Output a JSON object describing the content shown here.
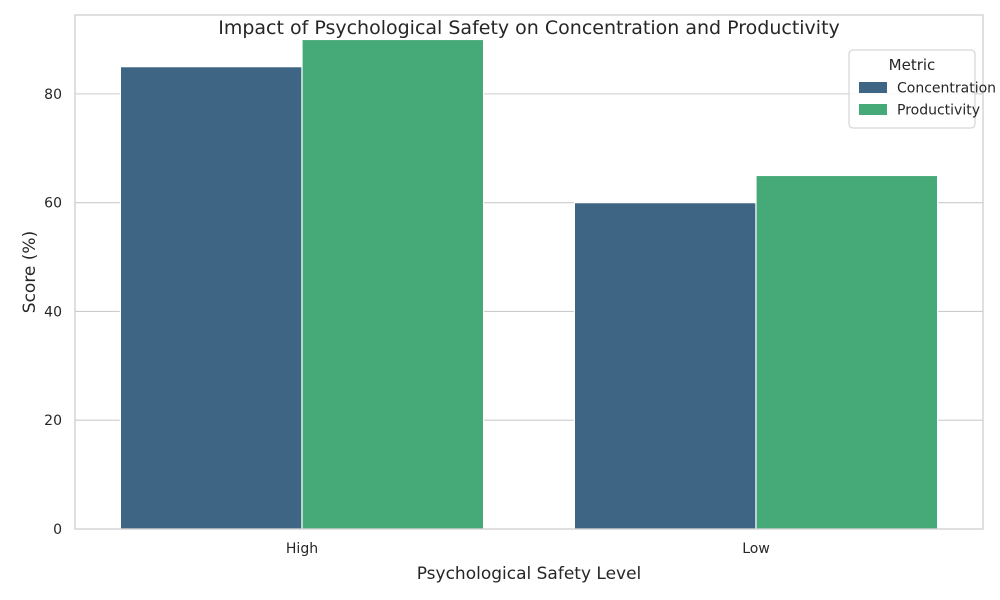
{
  "chart_data": {
    "type": "bar",
    "title": "Impact of Psychological Safety on Concentration and Productivity",
    "xlabel": "Psychological Safety Level",
    "ylabel": "Score (%)",
    "categories": [
      "High",
      "Low"
    ],
    "series": [
      {
        "name": "Concentration",
        "values": [
          85,
          60
        ],
        "color": "#3e6583"
      },
      {
        "name": "Productivity",
        "values": [
          90,
          65
        ],
        "color": "#46a978"
      }
    ],
    "ylim": [
      0,
      94.5
    ],
    "yticks": [
      0,
      20,
      40,
      60,
      80
    ],
    "grid": true,
    "legend": {
      "title": "Metric",
      "position": "top-right"
    }
  }
}
